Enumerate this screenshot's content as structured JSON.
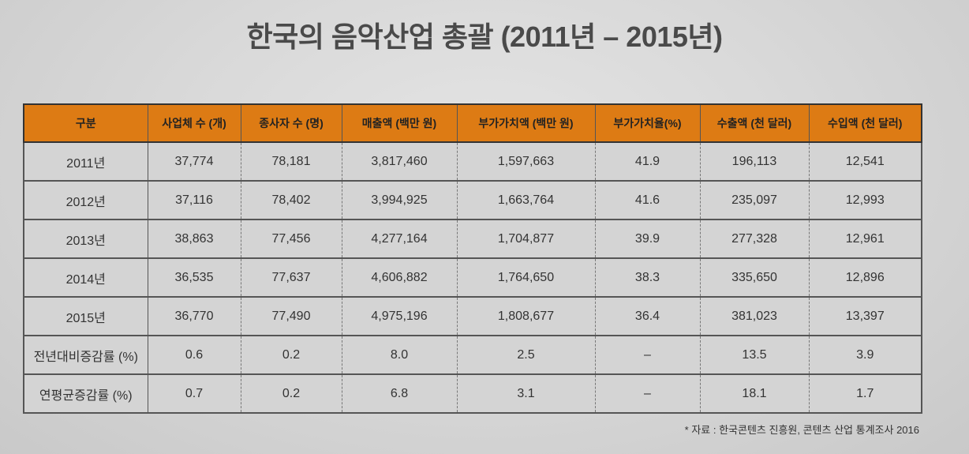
{
  "title": "한국의 음악산업 총괄 (2011년 – 2015년)",
  "table": {
    "headers": [
      "구분",
      "사업체 수 (개)",
      "종사자 수 (명)",
      "매출액 (백만 원)",
      "부가가치액 (백만 원)",
      "부가가치율(%)",
      "수출액 (천 달러)",
      "수입액 (천 달러)"
    ],
    "rows": [
      [
        "2011년",
        "37,774",
        "78,181",
        "3,817,460",
        "1,597,663",
        "41.9",
        "196,113",
        "12,541"
      ],
      [
        "2012년",
        "37,116",
        "78,402",
        "3,994,925",
        "1,663,764",
        "41.6",
        "235,097",
        "12,993"
      ],
      [
        "2013년",
        "38,863",
        "77,456",
        "4,277,164",
        "1,704,877",
        "39.9",
        "277,328",
        "12,961"
      ],
      [
        "2014년",
        "36,535",
        "77,637",
        "4,606,882",
        "1,764,650",
        "38.3",
        "335,650",
        "12,896"
      ],
      [
        "2015년",
        "36,770",
        "77,490",
        "4,975,196",
        "1,808,677",
        "36.4",
        "381,023",
        "13,397"
      ],
      [
        "전년대비증감률 (%)",
        "0.6",
        "0.2",
        "8.0",
        "2.5",
        "–",
        "13.5",
        "3.9"
      ],
      [
        "연평균증감률 (%)",
        "0.7",
        "0.2",
        "6.8",
        "3.1",
        "–",
        "18.1",
        "1.7"
      ]
    ]
  },
  "source": "* 자료 : 한국콘텐츠 진흥원, 콘텐츠 산업 통계조사 2016",
  "colors": {
    "header": "#dd7b14",
    "cell": "#d4d4d4"
  }
}
